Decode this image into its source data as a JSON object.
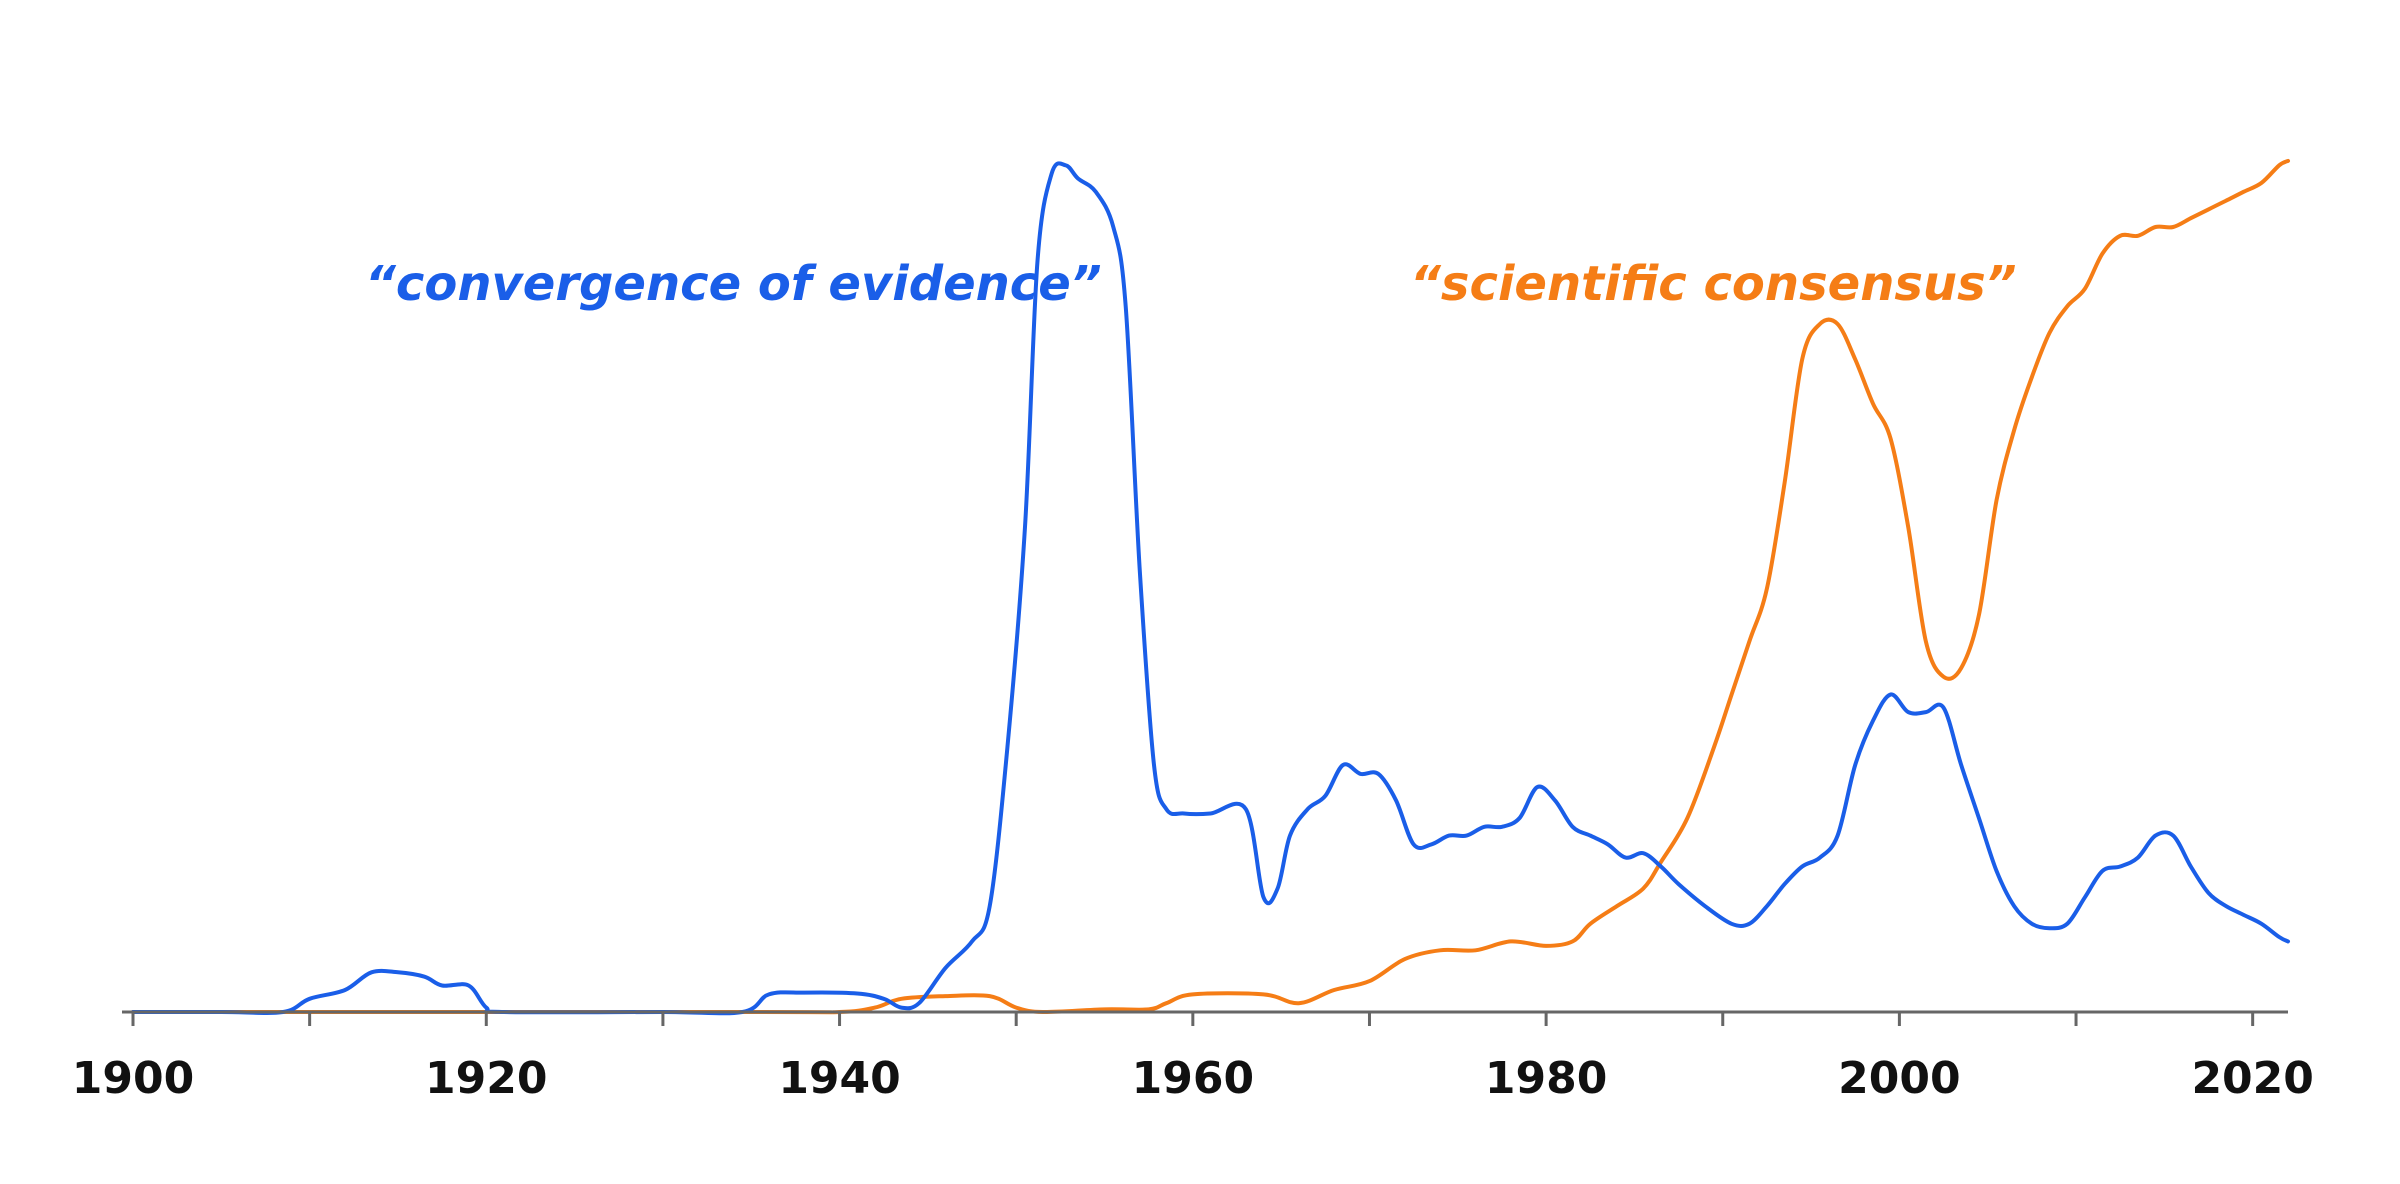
{
  "chart_data": {
    "type": "line",
    "title": "",
    "xlabel": "",
    "ylabel": "",
    "xlim": [
      1900,
      2022
    ],
    "ylim": [
      0,
      100
    ],
    "x_ticks": [
      1900,
      1920,
      1940,
      1960,
      1980,
      2000,
      2020
    ],
    "x_minor_ticks": [
      1910,
      1930,
      1950,
      1970,
      1990,
      2010
    ],
    "grid": false,
    "legend": "inline labels",
    "series": [
      {
        "name": "“convergence of evidence”",
        "color": "#1a5ee8",
        "points": [
          [
            1900,
            0
          ],
          [
            1905,
            0
          ],
          [
            1908.5,
            0
          ],
          [
            1910,
            1.5
          ],
          [
            1912,
            2.5
          ],
          [
            1913.5,
            4.5
          ],
          [
            1915,
            4.5
          ],
          [
            1916.5,
            4
          ],
          [
            1917.5,
            3
          ],
          [
            1919,
            3
          ],
          [
            1920,
            0.5
          ],
          [
            1921,
            0
          ],
          [
            1930,
            0
          ],
          [
            1934.5,
            0
          ],
          [
            1936,
            2
          ],
          [
            1938,
            2.2
          ],
          [
            1941,
            2.1
          ],
          [
            1942.5,
            1.5
          ],
          [
            1943.5,
            0.5
          ],
          [
            1944.5,
            1
          ],
          [
            1946,
            5
          ],
          [
            1947.5,
            8
          ],
          [
            1948.5,
            12
          ],
          [
            1949.5,
            30
          ],
          [
            1950.5,
            55
          ],
          [
            1951.2,
            85
          ],
          [
            1952,
            95
          ],
          [
            1952.8,
            96
          ],
          [
            1953.5,
            94.5
          ],
          [
            1954.5,
            93
          ],
          [
            1955.5,
            89
          ],
          [
            1956.2,
            80
          ],
          [
            1957,
            50
          ],
          [
            1957.8,
            28
          ],
          [
            1958.5,
            23
          ],
          [
            1959.5,
            22.5
          ],
          [
            1961,
            22.5
          ],
          [
            1963,
            23
          ],
          [
            1964,
            13
          ],
          [
            1964.8,
            14
          ],
          [
            1965.5,
            20
          ],
          [
            1966.5,
            23
          ],
          [
            1967.5,
            24.5
          ],
          [
            1968.5,
            28
          ],
          [
            1969.5,
            27
          ],
          [
            1970.5,
            27
          ],
          [
            1971.5,
            24
          ],
          [
            1972.5,
            19
          ],
          [
            1973.5,
            19
          ],
          [
            1974.5,
            20
          ],
          [
            1975.5,
            20
          ],
          [
            1976.5,
            21
          ],
          [
            1977.5,
            21
          ],
          [
            1978.5,
            22
          ],
          [
            1979.5,
            25.5
          ],
          [
            1980.5,
            24
          ],
          [
            1981.5,
            21
          ],
          [
            1982.5,
            20
          ],
          [
            1983.5,
            19
          ],
          [
            1984.5,
            17.5
          ],
          [
            1985.5,
            18
          ],
          [
            1986.5,
            16.5
          ],
          [
            1987.5,
            14.5
          ],
          [
            1989,
            12
          ],
          [
            1990.5,
            10
          ],
          [
            1991.5,
            10
          ],
          [
            1992.5,
            12
          ],
          [
            1993.5,
            14.5
          ],
          [
            1994.5,
            16.5
          ],
          [
            1995.5,
            17.5
          ],
          [
            1996.5,
            20
          ],
          [
            1997.5,
            28
          ],
          [
            1998.5,
            33
          ],
          [
            1999.5,
            36
          ],
          [
            2000.5,
            34
          ],
          [
            2001.5,
            34
          ],
          [
            2002.5,
            34.5
          ],
          [
            2003.5,
            28
          ],
          [
            2004.5,
            22
          ],
          [
            2005.5,
            16
          ],
          [
            2006.5,
            12
          ],
          [
            2007.5,
            10
          ],
          [
            2008.5,
            9.5
          ],
          [
            2009.5,
            10
          ],
          [
            2010.5,
            13
          ],
          [
            2011.5,
            16
          ],
          [
            2012.5,
            16.5
          ],
          [
            2013.5,
            17.5
          ],
          [
            2014.5,
            20
          ],
          [
            2015.5,
            20
          ],
          [
            2016.5,
            16.5
          ],
          [
            2017.5,
            13.5
          ],
          [
            2018.5,
            12
          ],
          [
            2019.5,
            11
          ],
          [
            2020.5,
            10
          ],
          [
            2021.5,
            8.5
          ],
          [
            2022,
            8
          ]
        ]
      },
      {
        "name": "“scientific consensus”",
        "color": "#f57d16",
        "points": [
          [
            1900,
            0
          ],
          [
            1935,
            0
          ],
          [
            1940,
            0
          ],
          [
            1942,
            0.5
          ],
          [
            1943.5,
            1.5
          ],
          [
            1946,
            1.8
          ],
          [
            1948.5,
            1.8
          ],
          [
            1950,
            0.5
          ],
          [
            1951.5,
            0
          ],
          [
            1955,
            0.3
          ],
          [
            1957.5,
            0.3
          ],
          [
            1958.5,
            1
          ],
          [
            1960,
            2
          ],
          [
            1964,
            2
          ],
          [
            1966,
            1
          ],
          [
            1968,
            2.5
          ],
          [
            1970,
            3.5
          ],
          [
            1972,
            6
          ],
          [
            1974,
            7
          ],
          [
            1976,
            7
          ],
          [
            1978,
            8
          ],
          [
            1980,
            7.5
          ],
          [
            1981.5,
            8
          ],
          [
            1982.5,
            10
          ],
          [
            1984,
            12
          ],
          [
            1985.5,
            14
          ],
          [
            1986.5,
            17
          ],
          [
            1988,
            22
          ],
          [
            1989.5,
            30
          ],
          [
            1990.5,
            36
          ],
          [
            1991.5,
            42
          ],
          [
            1992.5,
            48
          ],
          [
            1993.5,
            60
          ],
          [
            1994.5,
            74
          ],
          [
            1995.5,
            78
          ],
          [
            1996.5,
            78
          ],
          [
            1997.5,
            74
          ],
          [
            1998.5,
            69
          ],
          [
            1999.5,
            65
          ],
          [
            2000.5,
            55
          ],
          [
            2001.5,
            42
          ],
          [
            2002.5,
            38
          ],
          [
            2003.5,
            39
          ],
          [
            2004.5,
            45
          ],
          [
            2005.5,
            58
          ],
          [
            2006.5,
            66
          ],
          [
            2007.5,
            72
          ],
          [
            2008.5,
            77
          ],
          [
            2009.5,
            80
          ],
          [
            2010.5,
            82
          ],
          [
            2011.5,
            86
          ],
          [
            2012.5,
            88
          ],
          [
            2013.5,
            88
          ],
          [
            2014.5,
            89
          ],
          [
            2015.5,
            89
          ],
          [
            2016.5,
            90
          ],
          [
            2017.5,
            91
          ],
          [
            2018.5,
            92
          ],
          [
            2019.5,
            93
          ],
          [
            2020.5,
            94
          ],
          [
            2021.5,
            96
          ],
          [
            2022,
            96.5
          ]
        ]
      }
    ]
  }
}
